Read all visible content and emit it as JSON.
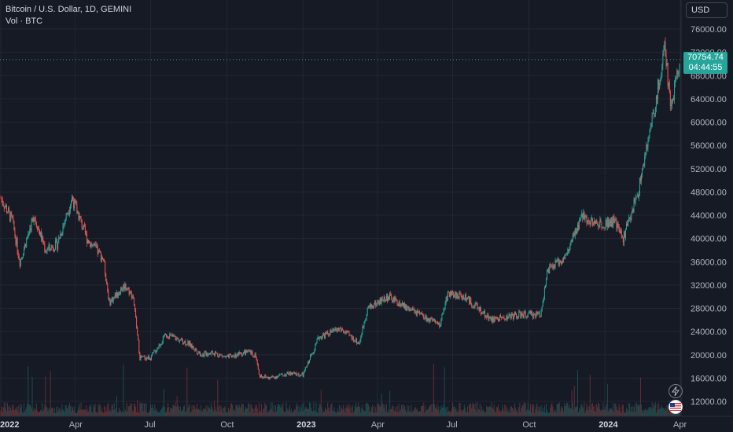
{
  "legend": {
    "title": "Bitcoin / U.S. Dollar, 1D, GEMINI",
    "volume": "Vol · BTC"
  },
  "currency": "USD",
  "last_price": {
    "value": "70754.74",
    "countdown": "04:44:55",
    "price": 70754.74
  },
  "colors": {
    "up": "#26a69a",
    "down": "#ef5350",
    "background": "#161a25",
    "grid": "#2a2e39",
    "price_tag": "#26a69a"
  },
  "chart_data": {
    "type": "candlestick",
    "title": "Bitcoin / U.S. Dollar, 1D, GEMINI",
    "ylim": [
      10000,
      78000
    ],
    "y_ticks": [
      {
        "value": 76000,
        "label": "76000.00"
      },
      {
        "value": 72000,
        "label": "72000.00"
      },
      {
        "value": 68000,
        "label": "68000.00"
      },
      {
        "value": 64000,
        "label": "64000.00"
      },
      {
        "value": 60000,
        "label": "60000.00"
      },
      {
        "value": 56000,
        "label": "56000.00"
      },
      {
        "value": 52000,
        "label": "52000.00"
      },
      {
        "value": 48000,
        "label": "48000.00"
      },
      {
        "value": 44000,
        "label": "44000.00"
      },
      {
        "value": 40000,
        "label": "40000.00"
      },
      {
        "value": 36000,
        "label": "36000.00"
      },
      {
        "value": 32000,
        "label": "32000.00"
      },
      {
        "value": 28000,
        "label": "28000.00"
      },
      {
        "value": 24000,
        "label": "24000.00"
      },
      {
        "value": 20000,
        "label": "20000.00"
      },
      {
        "value": 16000,
        "label": "16000.00"
      },
      {
        "value": 12000,
        "label": "12000.00"
      }
    ],
    "x_ticks": [
      {
        "date": "2022-01-01",
        "label": "2022",
        "bold": true
      },
      {
        "date": "2022-04-01",
        "label": "Apr",
        "bold": false
      },
      {
        "date": "2022-07-01",
        "label": "Jul",
        "bold": false
      },
      {
        "date": "2022-10-01",
        "label": "Oct",
        "bold": false
      },
      {
        "date": "2023-01-01",
        "label": "2023",
        "bold": true
      },
      {
        "date": "2023-04-01",
        "label": "Apr",
        "bold": false
      },
      {
        "date": "2023-07-01",
        "label": "Jul",
        "bold": false
      },
      {
        "date": "2023-10-01",
        "label": "Oct",
        "bold": false
      },
      {
        "date": "2024-01-01",
        "label": "2024",
        "bold": true
      },
      {
        "date": "2024-04-01",
        "label": "Apr",
        "bold": false
      }
    ],
    "x_range": [
      "2022-01-01",
      "2024-04-01"
    ],
    "series": [
      {
        "x": [
          "2022-01-01",
          "2022-01-15",
          "2022-01-24",
          "2022-02-10",
          "2022-02-24",
          "2022-03-10",
          "2022-03-28",
          "2022-04-15",
          "2022-05-05",
          "2022-05-12",
          "2022-05-31",
          "2022-06-10",
          "2022-06-18",
          "2022-07-01",
          "2022-07-20",
          "2022-08-15",
          "2022-09-01",
          "2022-09-13",
          "2022-10-01",
          "2022-10-25",
          "2022-11-05",
          "2022-11-09",
          "2022-11-21",
          "2022-12-15",
          "2023-01-01",
          "2023-01-20",
          "2023-02-15",
          "2023-03-10",
          "2023-03-20",
          "2023-04-14",
          "2023-05-01",
          "2023-06-15",
          "2023-06-25",
          "2023-07-15",
          "2023-08-17",
          "2023-09-15",
          "2023-10-15",
          "2023-10-24",
          "2023-11-15",
          "2023-12-05",
          "2023-12-20",
          "2024-01-12",
          "2024-01-23",
          "2024-02-10",
          "2024-02-28",
          "2024-03-14",
          "2024-03-20",
          "2024-03-31"
        ],
        "close": [
          47000,
          43000,
          36000,
          44000,
          38000,
          39000,
          47000,
          40000,
          36500,
          29000,
          32000,
          30000,
          19500,
          19500,
          23500,
          22000,
          20000,
          20500,
          19500,
          20500,
          20000,
          16500,
          16000,
          16800,
          16500,
          23000,
          24500,
          22000,
          28000,
          30000,
          28500,
          25000,
          30500,
          30000,
          26000,
          26800,
          27000,
          34500,
          37000,
          44000,
          42500,
          43000,
          40000,
          48000,
          61000,
          73000,
          62000,
          71000
        ]
      }
    ]
  }
}
